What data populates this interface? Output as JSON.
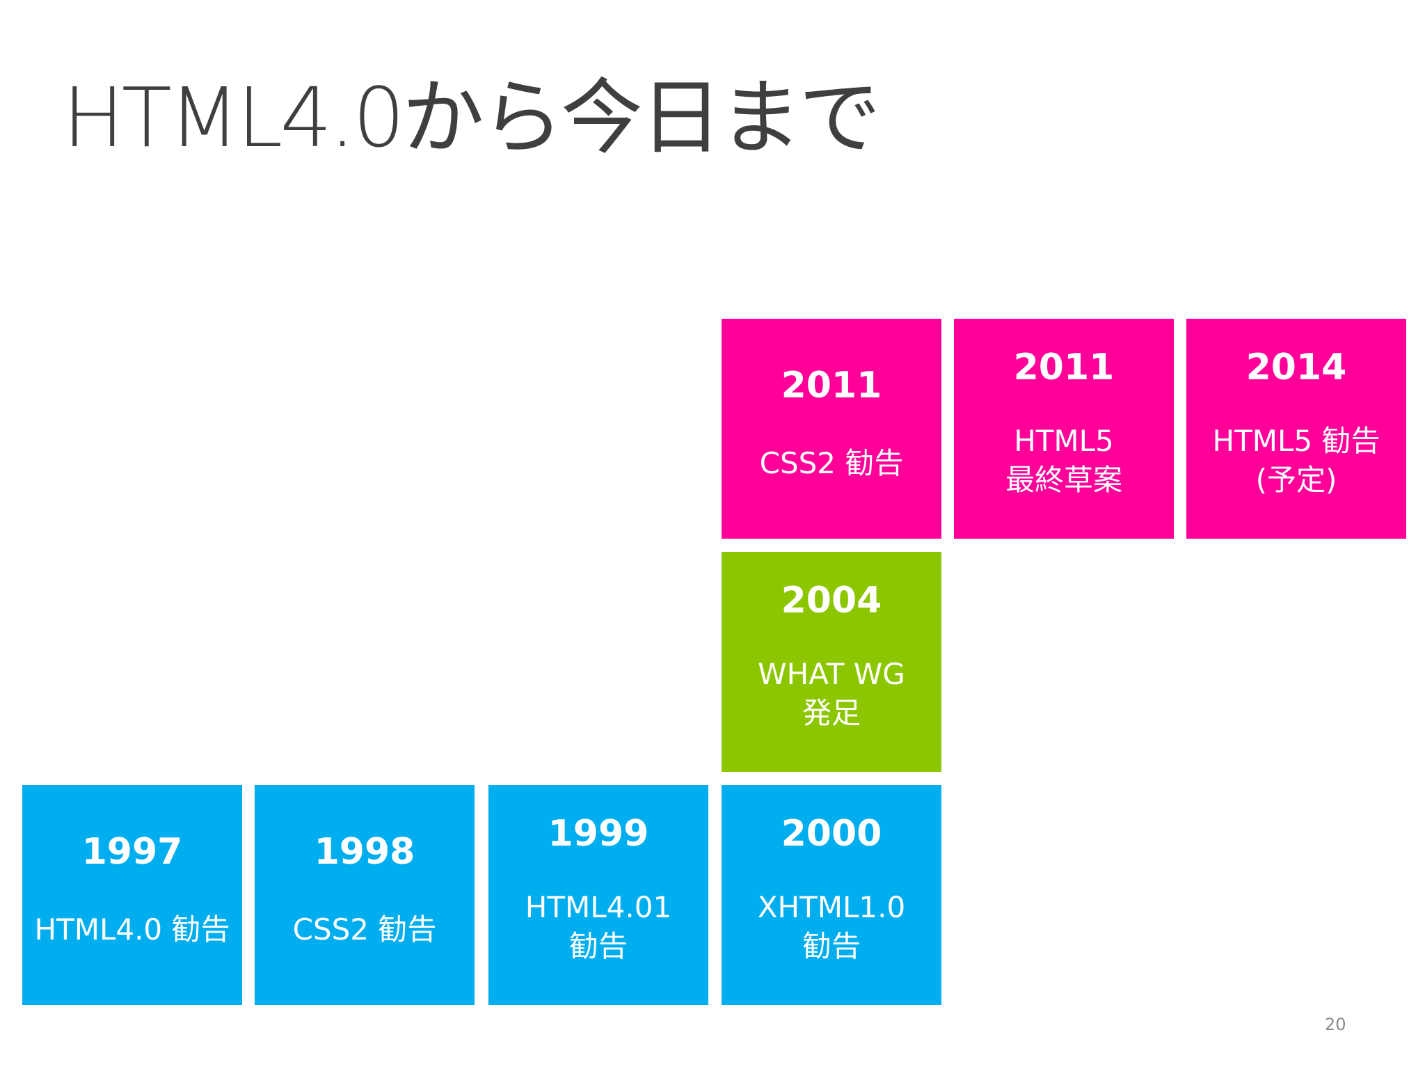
{
  "slide": {
    "title": "HTML4.0から今日まで",
    "page_number": "20"
  },
  "tiles": {
    "t1997": {
      "year": "1997",
      "description": "HTML4.0 勧告",
      "color": "#00adef"
    },
    "t1998": {
      "year": "1998",
      "description": "CSS2 勧告",
      "color": "#00adef"
    },
    "t1999": {
      "year": "1999",
      "description": "HTML4.01\n勧告",
      "color": "#00adef"
    },
    "t2000": {
      "year": "2000",
      "description": "XHTML1.0\n勧告",
      "color": "#00adef"
    },
    "t2004": {
      "year": "2004",
      "description": "WHAT WG\n発足",
      "color": "#8cc600"
    },
    "t2011a": {
      "year": "2011",
      "description": "CSS2 勧告",
      "color": "#ff0099"
    },
    "t2011b": {
      "year": "2011",
      "description": "HTML5\n最終草案",
      "color": "#ff0099"
    },
    "t2014": {
      "year": "2014",
      "description": "HTML5 勧告\n(予定)",
      "color": "#ff0099"
    }
  }
}
